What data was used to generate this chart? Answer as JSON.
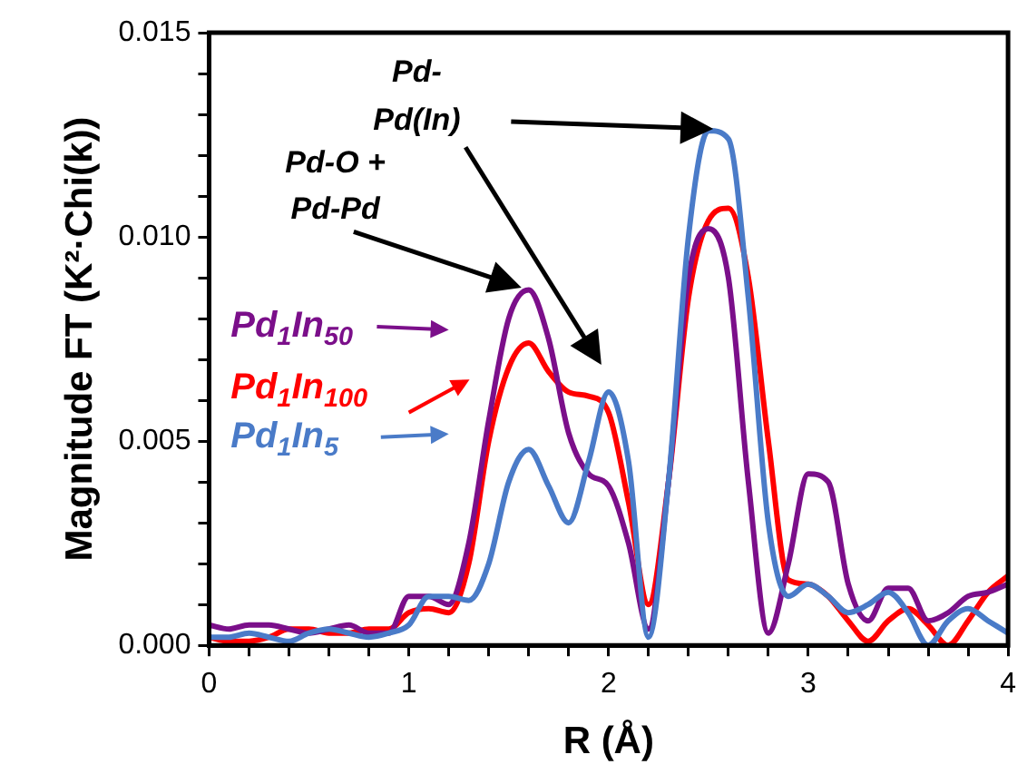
{
  "chart_data": {
    "type": "line",
    "xlabel": "R (Å)",
    "ylabel": "Magnitude FT (K²·Chi(k))",
    "x": [
      0,
      0.1,
      0.2,
      0.3,
      0.4,
      0.5,
      0.6,
      0.7,
      0.8,
      0.9,
      1.0,
      1.1,
      1.2,
      1.3,
      1.4,
      1.5,
      1.6,
      1.7,
      1.8,
      1.9,
      2.0,
      2.1,
      2.2,
      2.3,
      2.4,
      2.5,
      2.6,
      2.7,
      2.8,
      2.9,
      3.0,
      3.1,
      3.2,
      3.3,
      3.4,
      3.5,
      3.6,
      3.7,
      3.8,
      3.9,
      4.0
    ],
    "series": [
      {
        "name": "Pd$_{1}$In$_{5}$",
        "color": "#4a7bc8",
        "values": [
          0.0002,
          0.0002,
          0.0003,
          0.0002,
          0.0001,
          0.0003,
          0.0004,
          0.0003,
          0.0002,
          0.0003,
          0.0005,
          0.0012,
          0.0012,
          0.0011,
          0.002,
          0.004,
          0.0048,
          0.0039,
          0.003,
          0.0045,
          0.0062,
          0.0045,
          0.0002,
          0.004,
          0.01,
          0.0126,
          0.0124,
          0.0085,
          0.003,
          0.0012,
          0.0015,
          0.0012,
          0.0008,
          0.001,
          0.0013,
          0.0008,
          0.0,
          0.0006,
          0.0009,
          0.0006,
          0.0003
        ]
      },
      {
        "name": "Pd$_{1}$In$_{50}$",
        "color": "#7b0f8a",
        "values": [
          0.0005,
          0.0004,
          0.0005,
          0.0005,
          0.0004,
          0.0003,
          0.0004,
          0.0005,
          0.0003,
          0.0003,
          0.0012,
          0.0012,
          0.001,
          0.0025,
          0.0055,
          0.008,
          0.0087,
          0.0075,
          0.0052,
          0.0042,
          0.0039,
          0.0025,
          0.0004,
          0.004,
          0.009,
          0.0102,
          0.009,
          0.004,
          0.0003,
          0.002,
          0.0042,
          0.004,
          0.0015,
          0.0006,
          0.0014,
          0.0014,
          0.0006,
          0.0008,
          0.0012,
          0.0013,
          0.0015
        ]
      },
      {
        "name": "Pd$_{1}$In$_{100}$",
        "color": "#ff0000",
        "values": [
          0.0002,
          0.0001,
          0.0001,
          0.0002,
          0.0004,
          0.0004,
          0.0003,
          0.0003,
          0.0004,
          0.0004,
          0.0008,
          0.0009,
          0.0008,
          0.002,
          0.005,
          0.0068,
          0.0074,
          0.0067,
          0.0062,
          0.0061,
          0.0057,
          0.0035,
          0.001,
          0.004,
          0.0085,
          0.0104,
          0.0107,
          0.009,
          0.005,
          0.0016,
          0.0015,
          0.0012,
          0.0006,
          0.0001,
          0.0006,
          0.0009,
          0.0005,
          0.0,
          0.0006,
          0.0013,
          0.0017
        ]
      }
    ],
    "xlim": [
      0,
      4
    ],
    "xticks": [
      0,
      {
        "value": 0.2,
        "label": null
      },
      {
        "value": 0.4,
        "label": null
      },
      {
        "value": 0.6,
        "label": null
      },
      {
        "value": 0.8,
        "label": null
      },
      1,
      {
        "value": 1.2,
        "label": null
      },
      {
        "value": 1.4,
        "label": null
      },
      {
        "value": 1.6,
        "label": null
      },
      {
        "value": 1.8,
        "label": null
      },
      2,
      {
        "value": 2.2,
        "label": null
      },
      {
        "value": 2.4,
        "label": null
      },
      {
        "value": 2.6,
        "label": null
      },
      {
        "value": 2.8,
        "label": null
      },
      3,
      {
        "value": 3.2,
        "label": null
      },
      {
        "value": 3.4,
        "label": null
      },
      {
        "value": 3.6,
        "label": null
      },
      {
        "value": 3.8,
        "label": null
      },
      4
    ],
    "ylim": [
      0,
      0.015
    ],
    "yticks": [
      {
        "value": 0,
        "label": "0.000"
      },
      {
        "value": 0.001,
        "label": null
      },
      {
        "value": 0.002,
        "label": null
      },
      {
        "value": 0.003,
        "label": null
      },
      {
        "value": 0.004,
        "label": null
      },
      {
        "value": 0.005,
        "label": "0.005"
      },
      {
        "value": 0.006,
        "label": null
      },
      {
        "value": 0.007,
        "label": null
      },
      {
        "value": 0.008,
        "label": null
      },
      {
        "value": 0.009,
        "label": null
      },
      {
        "value": 0.01,
        "label": "0.010"
      },
      {
        "value": 0.011,
        "label": null
      },
      {
        "value": 0.012,
        "label": null
      },
      {
        "value": 0.013,
        "label": null
      },
      {
        "value": 0.014,
        "label": null
      },
      {
        "value": 0.015,
        "label": "0.015"
      }
    ],
    "annotations": [
      "Pd-O + Pd-Pd",
      "Pd- Pd(In)"
    ],
    "grid": false,
    "legend": "left",
    "marker": "none",
    "line_style": "solid"
  }
}
